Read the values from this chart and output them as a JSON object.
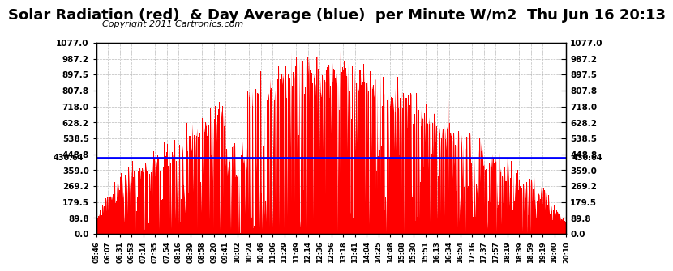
{
  "title": "Solar Radiation (red)  & Day Average (blue)  per Minute W/m2  Thu Jun 16 20:13",
  "copyright": "Copyright 2011 Cartronics.com",
  "average_value": 430.64,
  "y_max": 1077.0,
  "y_min": 0.0,
  "yticks": [
    0.0,
    89.8,
    179.5,
    269.2,
    359.0,
    448.8,
    538.5,
    628.2,
    718.0,
    807.8,
    897.5,
    987.2,
    1077.0
  ],
  "bar_color": "#FF0000",
  "avg_line_color": "#0000FF",
  "grid_color": "#AAAAAA",
  "background_color": "#FFFFFF",
  "title_fontsize": 13,
  "copyright_fontsize": 8,
  "x_labels": [
    "05:46",
    "06:07",
    "06:31",
    "06:53",
    "07:14",
    "07:35",
    "07:54",
    "08:16",
    "08:39",
    "08:58",
    "09:20",
    "09:41",
    "10:02",
    "10:24",
    "10:46",
    "11:06",
    "11:29",
    "11:49",
    "12:14",
    "12:36",
    "12:56",
    "13:18",
    "13:41",
    "14:04",
    "14:25",
    "14:48",
    "15:08",
    "15:30",
    "15:51",
    "16:13",
    "16:34",
    "16:54",
    "17:16",
    "17:37",
    "17:57",
    "18:19",
    "18:39",
    "18:59",
    "19:19",
    "19:40",
    "20:10"
  ]
}
